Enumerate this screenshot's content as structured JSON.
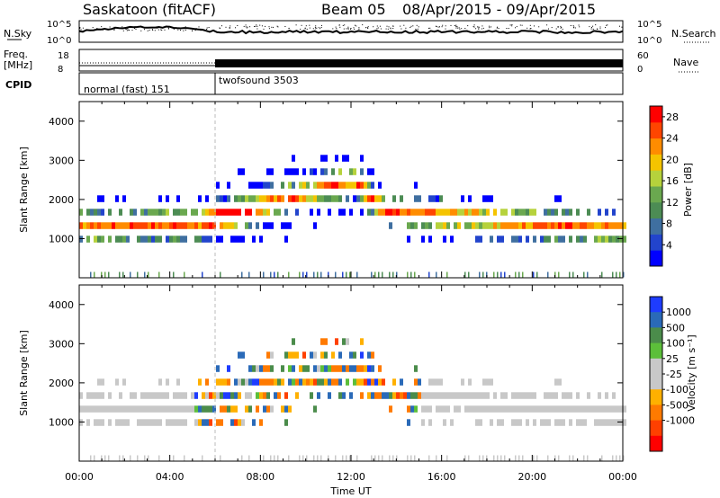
{
  "header": {
    "station": "Saskatoon (fitACF)",
    "beam": "Beam 05",
    "date_range": "08/Apr/2015 - 09/Apr/2015"
  },
  "strips": {
    "nsky_label": "N.Sky",
    "nsky_ticks": [
      "10^5",
      "10^0"
    ],
    "nsearch_label": "N.Search",
    "nsearch_ticks": [
      "10^5",
      "10^0"
    ],
    "freq_label": "Freq.",
    "freq_unit": "[MHz]",
    "freq_ticks": [
      "18",
      "8"
    ],
    "nave_label": "Nave",
    "nave_ticks": [
      "60",
      "0"
    ],
    "cpid_label": "CPID",
    "cpid_segments": [
      {
        "name": "normal (fast) 151",
        "start_hour": 0,
        "end_hour": 6
      },
      {
        "name": "twofsound 3503",
        "start_hour": 6,
        "end_hour": 24
      }
    ]
  },
  "colors": {
    "power_scale": [
      "#0000ff",
      "#2244cc",
      "#3f6fa0",
      "#4c8c54",
      "#6aa84f",
      "#b6d23c",
      "#f5c400",
      "#ff8c00",
      "#ff4500",
      "#ff0000"
    ],
    "velocity_scale": [
      "#1e3cff",
      "#2a6ab8",
      "#4b8c4b",
      "#5cbf3a",
      "#c8c8c8",
      "#c8c8c8",
      "#ffb000",
      "#ff7a00",
      "#ff4000",
      "#ff0000"
    ]
  },
  "chart_data": [
    {
      "type": "heatmap",
      "name": "power",
      "ylabel": "Slant Range [km]",
      "xlim": [
        0,
        24
      ],
      "ylim": [
        0,
        4500
      ],
      "yticks": [
        1000,
        2000,
        3000,
        4000
      ],
      "xticks": [
        "00:00",
        "04:00",
        "08:00",
        "12:00",
        "16:00",
        "20:00",
        "00:00"
      ],
      "xlabel": "Time UT",
      "colorbar_label": "Power [dB]",
      "colorbar_ticks": [
        4,
        8,
        12,
        16,
        20,
        24,
        28
      ],
      "colorbar_range": [
        0,
        30
      ]
    },
    {
      "type": "heatmap",
      "name": "velocity",
      "ylabel": "Slant Range [km]",
      "xlim": [
        0,
        24
      ],
      "ylim": [
        0,
        4500
      ],
      "yticks": [
        1000,
        2000,
        3000,
        4000
      ],
      "xticks": [
        "00:00",
        "04:00",
        "08:00",
        "12:00",
        "16:00",
        "20:00",
        "00:00"
      ],
      "xlabel": "Time UT",
      "colorbar_label": "Velocity [m s⁻¹]",
      "colorbar_ticks": [
        "1000",
        "500",
        "100",
        "25",
        "-25",
        "-100",
        "-500",
        "-1000"
      ],
      "colorbar_range": [
        -1250,
        1250
      ]
    }
  ]
}
